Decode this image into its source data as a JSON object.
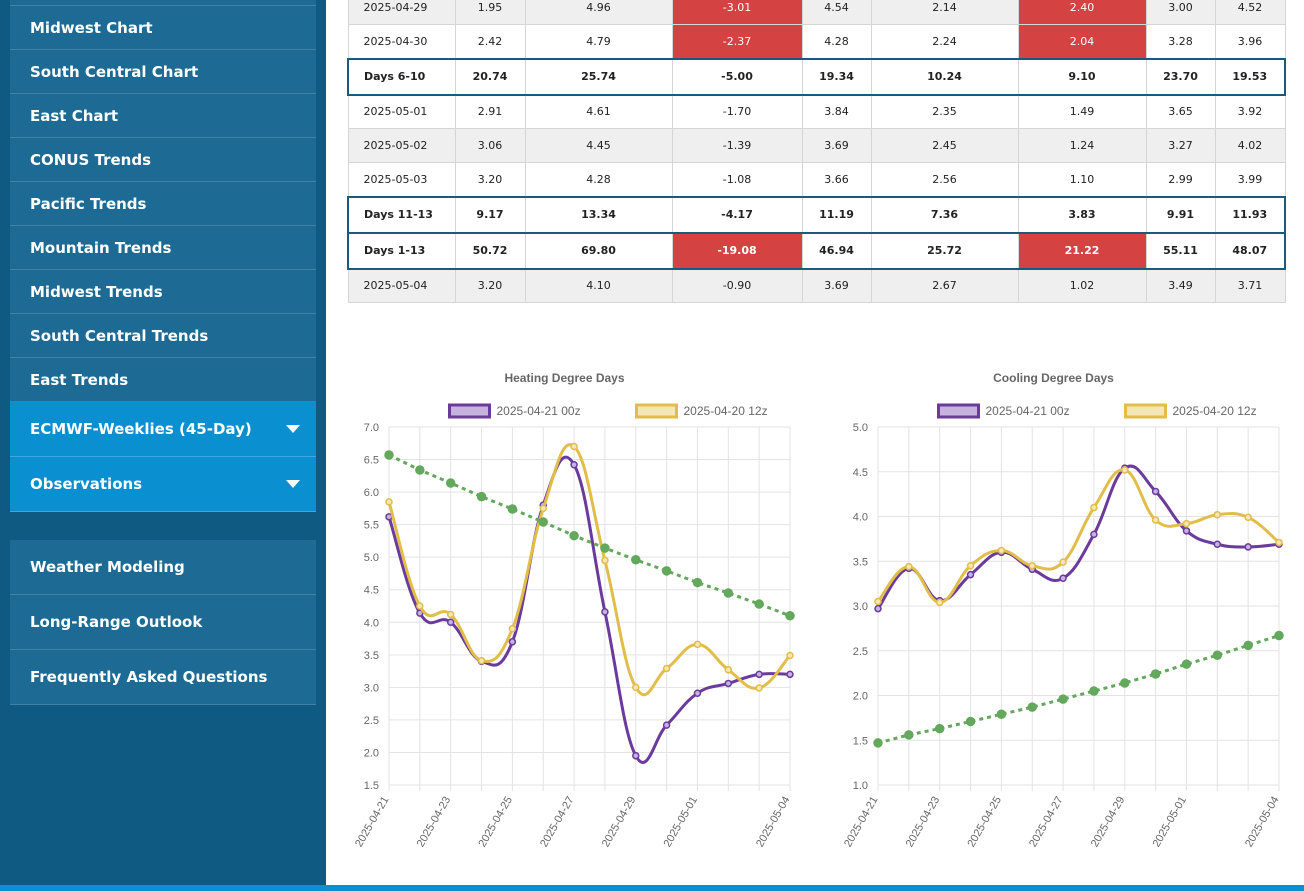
{
  "sidebar": {
    "items": [
      {
        "label": "Midwest Chart"
      },
      {
        "label": "South Central Chart"
      },
      {
        "label": "East Chart"
      },
      {
        "label": "CONUS Trends"
      },
      {
        "label": "Pacific Trends"
      },
      {
        "label": "Mountain Trends"
      },
      {
        "label": "Midwest Trends"
      },
      {
        "label": "South Central Trends"
      },
      {
        "label": "East Trends"
      }
    ],
    "expandable": [
      {
        "label": "ECMWF-Weeklies (45-Day)"
      },
      {
        "label": "Observations"
      }
    ],
    "secondary": [
      {
        "label": "Weather Modeling"
      },
      {
        "label": "Long-Range Outlook"
      },
      {
        "label": "Frequently Asked Questions"
      }
    ]
  },
  "table": {
    "rows": [
      {
        "kind": "day",
        "cells": [
          "2025-04-29",
          "1.95",
          "4.96",
          "-3.01",
          "4.54",
          "2.14",
          "2.40",
          "3.00",
          "4.52"
        ],
        "neg": [
          3,
          6
        ]
      },
      {
        "kind": "day",
        "cells": [
          "2025-04-30",
          "2.42",
          "4.79",
          "-2.37",
          "4.28",
          "2.24",
          "2.04",
          "3.28",
          "3.96"
        ],
        "neg": [
          3,
          6
        ]
      },
      {
        "kind": "sum",
        "cells": [
          "Days 6-10",
          "20.74",
          "25.74",
          "-5.00",
          "19.34",
          "10.24",
          "9.10",
          "23.70",
          "19.53"
        ],
        "neg": []
      },
      {
        "kind": "day",
        "cells": [
          "2025-05-01",
          "2.91",
          "4.61",
          "-1.70",
          "3.84",
          "2.35",
          "1.49",
          "3.65",
          "3.92"
        ],
        "neg": []
      },
      {
        "kind": "day",
        "cells": [
          "2025-05-02",
          "3.06",
          "4.45",
          "-1.39",
          "3.69",
          "2.45",
          "1.24",
          "3.27",
          "4.02"
        ],
        "neg": []
      },
      {
        "kind": "day",
        "cells": [
          "2025-05-03",
          "3.20",
          "4.28",
          "-1.08",
          "3.66",
          "2.56",
          "1.10",
          "2.99",
          "3.99"
        ],
        "neg": []
      },
      {
        "kind": "sum",
        "cells": [
          "Days 11-13",
          "9.17",
          "13.34",
          "-4.17",
          "11.19",
          "7.36",
          "3.83",
          "9.91",
          "11.93"
        ],
        "neg": []
      },
      {
        "kind": "sum",
        "cells": [
          "Days 1-13",
          "50.72",
          "69.80",
          "-19.08",
          "46.94",
          "25.72",
          "21.22",
          "55.11",
          "48.07"
        ],
        "neg": [
          3,
          6
        ]
      },
      {
        "kind": "day",
        "cells": [
          "2025-05-04",
          "3.20",
          "4.10",
          "-0.90",
          "3.69",
          "2.67",
          "1.02",
          "3.49",
          "3.71"
        ],
        "neg": []
      }
    ]
  },
  "chart_data": [
    {
      "type": "line",
      "title": "Heating Degree Days",
      "x": [
        "2025-04-21",
        "2025-04-22",
        "2025-04-23",
        "2025-04-24",
        "2025-04-25",
        "2025-04-26",
        "2025-04-27",
        "2025-04-28",
        "2025-04-29",
        "2025-04-30",
        "2025-05-01",
        "2025-05-02",
        "2025-05-03",
        "2025-05-04"
      ],
      "tick_labels": [
        "2025-04-21",
        "2025-04-23",
        "2025-04-25",
        "2025-04-27",
        "2025-04-29",
        "2025-05-01",
        "2025-05-04"
      ],
      "ylim": [
        1.5,
        7.0
      ],
      "yticks": [
        "7.0",
        "6.5",
        "6.0",
        "5.5",
        "5.0",
        "4.5",
        "4.0",
        "3.5",
        "3.0",
        "2.5",
        "2.0",
        "1.5"
      ],
      "series": [
        {
          "name": "2025-04-21 00z",
          "color": "#6a3a9c",
          "values": [
            5.62,
            4.14,
            4.0,
            3.4,
            3.7,
            5.8,
            6.42,
            4.16,
            1.95,
            2.42,
            2.91,
            3.06,
            3.2,
            3.2
          ]
        },
        {
          "name": "2025-04-20 12z",
          "color": "#e2bd4a",
          "values": [
            5.85,
            4.25,
            4.12,
            3.41,
            3.9,
            5.75,
            6.7,
            4.95,
            3.0,
            3.29,
            3.66,
            3.27,
            2.99,
            3.49
          ]
        },
        {
          "name": "",
          "color": "#63a85c",
          "dashed": true,
          "values": [
            6.57,
            6.34,
            6.14,
            5.93,
            5.74,
            5.54,
            5.33,
            5.14,
            4.96,
            4.79,
            4.61,
            4.45,
            4.28,
            4.1
          ]
        }
      ],
      "legend": "top"
    },
    {
      "type": "line",
      "title": "Cooling Degree Days",
      "x": [
        "2025-04-21",
        "2025-04-22",
        "2025-04-23",
        "2025-04-24",
        "2025-04-25",
        "2025-04-26",
        "2025-04-27",
        "2025-04-28",
        "2025-04-29",
        "2025-04-30",
        "2025-05-01",
        "2025-05-02",
        "2025-05-03",
        "2025-05-04"
      ],
      "tick_labels": [
        "2025-04-21",
        "2025-04-23",
        "2025-04-25",
        "2025-04-27",
        "2025-04-29",
        "2025-05-01",
        "2025-05-04"
      ],
      "ylim": [
        1.0,
        5.0
      ],
      "yticks": [
        "5.0",
        "4.5",
        "4.0",
        "3.5",
        "3.0",
        "2.5",
        "2.0",
        "1.5",
        "1.0"
      ],
      "series": [
        {
          "name": "2025-04-21 00z",
          "color": "#6a3a9c",
          "values": [
            2.97,
            3.42,
            3.06,
            3.35,
            3.6,
            3.41,
            3.31,
            3.8,
            4.54,
            4.28,
            3.84,
            3.69,
            3.66,
            3.69
          ]
        },
        {
          "name": "2025-04-20 12z",
          "color": "#e2bd4a",
          "values": [
            3.05,
            3.44,
            3.04,
            3.45,
            3.62,
            3.45,
            3.49,
            4.1,
            4.52,
            3.96,
            3.92,
            4.02,
            3.99,
            3.71
          ]
        },
        {
          "name": "",
          "color": "#63a85c",
          "dashed": true,
          "values": [
            1.47,
            1.56,
            1.63,
            1.71,
            1.79,
            1.87,
            1.96,
            2.05,
            2.14,
            2.24,
            2.35,
            2.45,
            2.56,
            2.67
          ]
        }
      ],
      "legend": "top"
    }
  ]
}
